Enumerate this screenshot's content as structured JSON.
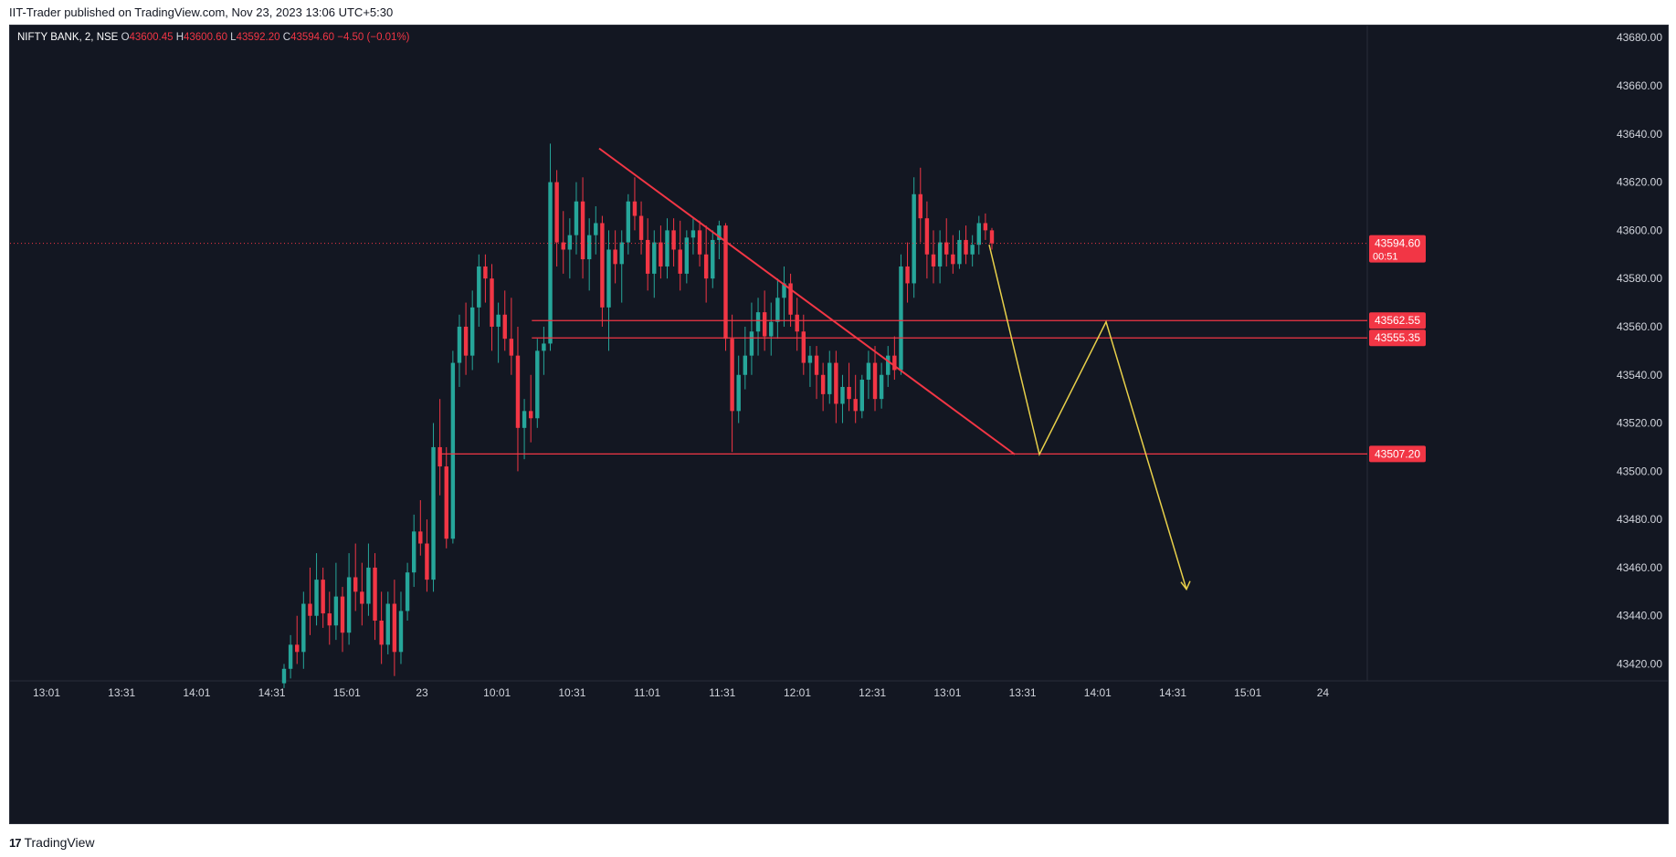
{
  "header": {
    "published_text": "IIT-Trader published on TradingView.com, Nov 23, 2023 13:06 UTC+5:30"
  },
  "legend": {
    "symbol": "NIFTY BANK, 2, NSE",
    "open_label": "O",
    "open": "43600.45",
    "high_label": "H",
    "high": "43600.60",
    "low_label": "L",
    "low": "43592.20",
    "close_label": "C",
    "close": "43594.60",
    "change": "−4.50 (−0.01%)"
  },
  "footer": {
    "logo_mark": "17",
    "logo_text": "TradingView"
  },
  "colors": {
    "background": "#131722",
    "up": "#26a69a",
    "down": "#f23645",
    "line": "#f23645",
    "projection": "#e8d04a",
    "axis_text": "#d1d4dc"
  },
  "chart_data": {
    "type": "candlestick",
    "symbol": "NIFTY BANK",
    "interval": "2",
    "exchange": "NSE",
    "ylim": [
      43413,
      43685
    ],
    "y_ticks": [
      43420,
      43440,
      43460,
      43480,
      43500,
      43520,
      43540,
      43560,
      43580,
      43600,
      43620,
      43640,
      43660,
      43680
    ],
    "y_tick_labels": [
      "43420.00",
      "43440.00",
      "43460.00",
      "43480.00",
      "43500.00",
      "43520.00",
      "43540.00",
      "43560.00",
      "43580.00",
      "43600.00",
      "43620.00",
      "43640.00",
      "43660.00",
      "43680.00"
    ],
    "x_ticks": [
      "13:01",
      "13:31",
      "14:01",
      "14:31",
      "15:01",
      "23",
      "10:01",
      "10:31",
      "11:01",
      "11:31",
      "12:01",
      "12:31",
      "13:01",
      "13:31",
      "14:01",
      "14:31",
      "15:01",
      "24"
    ],
    "current_price": {
      "value": 43594.6,
      "label": "43594.60",
      "countdown": "00:51"
    },
    "price_levels": [
      {
        "value": 43562.55,
        "label": "43562.55"
      },
      {
        "value": 43555.35,
        "label": "43555.35"
      },
      {
        "value": 43507.2,
        "label": "43507.20"
      }
    ],
    "candles": [
      [
        43412,
        43420,
        43410,
        43418
      ],
      [
        43418,
        43432,
        43414,
        43428
      ],
      [
        43428,
        43440,
        43420,
        43425
      ],
      [
        43425,
        43450,
        43418,
        43445
      ],
      [
        43445,
        43460,
        43432,
        43440
      ],
      [
        43440,
        43466,
        43436,
        43455
      ],
      [
        43455,
        43460,
        43435,
        43441
      ],
      [
        43441,
        43450,
        43428,
        43436
      ],
      [
        43436,
        43462,
        43430,
        43448
      ],
      [
        43448,
        43452,
        43425,
        43433
      ],
      [
        43433,
        43466,
        43428,
        43456
      ],
      [
        43456,
        43470,
        43442,
        43450
      ],
      [
        43450,
        43462,
        43436,
        43445
      ],
      [
        43445,
        43470,
        43440,
        43460
      ],
      [
        43460,
        43466,
        43430,
        43438
      ],
      [
        43438,
        43450,
        43420,
        43428
      ],
      [
        43428,
        43450,
        43424,
        43445
      ],
      [
        43445,
        43455,
        43415,
        43425
      ],
      [
        43425,
        43450,
        43420,
        43442
      ],
      [
        43442,
        43462,
        43438,
        43458
      ],
      [
        43458,
        43482,
        43452,
        43475
      ],
      [
        43475,
        43488,
        43465,
        43470
      ],
      [
        43470,
        43480,
        43450,
        43455
      ],
      [
        43455,
        43520,
        43450,
        43510
      ],
      [
        43510,
        43530,
        43490,
        43502
      ],
      [
        43502,
        43510,
        43468,
        43472
      ],
      [
        43472,
        43550,
        43470,
        43545
      ],
      [
        43545,
        43565,
        43535,
        43560
      ],
      [
        43560,
        43570,
        43540,
        43548
      ],
      [
        43548,
        43575,
        43542,
        43568
      ],
      [
        43568,
        43590,
        43560,
        43585
      ],
      [
        43585,
        43590,
        43570,
        43580
      ],
      [
        43580,
        43586,
        43550,
        43560
      ],
      [
        43560,
        43570,
        43545,
        43565
      ],
      [
        43565,
        43575,
        43550,
        43555
      ],
      [
        43555,
        43572,
        43540,
        43548
      ],
      [
        43548,
        43560,
        43500,
        43518
      ],
      [
        43518,
        43530,
        43505,
        43525
      ],
      [
        43525,
        43540,
        43512,
        43522
      ],
      [
        43522,
        43555,
        43518,
        43550
      ],
      [
        43550,
        43560,
        43540,
        43553
      ],
      [
        43553,
        43636,
        43550,
        43620
      ],
      [
        43620,
        43625,
        43585,
        43595
      ],
      [
        43595,
        43608,
        43582,
        43592
      ],
      [
        43592,
        43605,
        43580,
        43598
      ],
      [
        43598,
        43620,
        43590,
        43612
      ],
      [
        43612,
        43622,
        43580,
        43588
      ],
      [
        43588,
        43605,
        43575,
        43598
      ],
      [
        43598,
        43610,
        43590,
        43603
      ],
      [
        43603,
        43606,
        43560,
        43568
      ],
      [
        43568,
        43600,
        43550,
        43592
      ],
      [
        43592,
        43600,
        43578,
        43586
      ],
      [
        43586,
        43600,
        43570,
        43595
      ],
      [
        43595,
        43615,
        43590,
        43612
      ],
      [
        43612,
        43622,
        43600,
        43606
      ],
      [
        43606,
        43612,
        43590,
        43596
      ],
      [
        43596,
        43605,
        43575,
        43582
      ],
      [
        43582,
        43600,
        43572,
        43595
      ],
      [
        43595,
        43602,
        43580,
        43585
      ],
      [
        43585,
        43605,
        43580,
        43600
      ],
      [
        43600,
        43605,
        43585,
        43592
      ],
      [
        43592,
        43604,
        43575,
        43582
      ],
      [
        43582,
        43600,
        43578,
        43597
      ],
      [
        43597,
        43605,
        43590,
        43600
      ],
      [
        43600,
        43604,
        43585,
        43590
      ],
      [
        43590,
        43602,
        43570,
        43580
      ],
      [
        43580,
        43600,
        43576,
        43596
      ],
      [
        43596,
        43604,
        43588,
        43602
      ],
      [
        43602,
        43603,
        43550,
        43555
      ],
      [
        43555,
        43565,
        43508,
        43525
      ],
      [
        43525,
        43548,
        43520,
        43540
      ],
      [
        43540,
        43560,
        43534,
        43548
      ],
      [
        43548,
        43570,
        43540,
        43558
      ],
      [
        43558,
        43572,
        43548,
        43566
      ],
      [
        43566,
        43575,
        43550,
        43556
      ],
      [
        43556,
        43570,
        43548,
        43562
      ],
      [
        43562,
        43580,
        43555,
        43572
      ],
      [
        43572,
        43585,
        43560,
        43578
      ],
      [
        43578,
        43582,
        43560,
        43565
      ],
      [
        43565,
        43572,
        43550,
        43558
      ],
      [
        43558,
        43565,
        43540,
        43545
      ],
      [
        43545,
        43552,
        43535,
        43548
      ],
      [
        43548,
        43552,
        43530,
        43540
      ],
      [
        43540,
        43545,
        43525,
        43532
      ],
      [
        43532,
        43550,
        43528,
        43545
      ],
      [
        43545,
        43550,
        43520,
        43528
      ],
      [
        43528,
        43540,
        43520,
        43535
      ],
      [
        43535,
        43545,
        43525,
        43530
      ],
      [
        43530,
        43540,
        43520,
        43525
      ],
      [
        43525,
        43540,
        43522,
        43538
      ],
      [
        43538,
        43550,
        43530,
        43545
      ],
      [
        43545,
        43552,
        43525,
        43530
      ],
      [
        43530,
        43545,
        43526,
        43540
      ],
      [
        43540,
        43552,
        43535,
        43548
      ],
      [
        43548,
        43556,
        43538,
        43542
      ],
      [
        43542,
        43590,
        43540,
        43585
      ],
      [
        43585,
        43595,
        43570,
        43578
      ],
      [
        43578,
        43622,
        43572,
        43615
      ],
      [
        43615,
        43626,
        43595,
        43605
      ],
      [
        43605,
        43612,
        43580,
        43590
      ],
      [
        43590,
        43600,
        43578,
        43585
      ],
      [
        43585,
        43600,
        43578,
        43595
      ],
      [
        43595,
        43605,
        43585,
        43590
      ],
      [
        43590,
        43598,
        43582,
        43586
      ],
      [
        43586,
        43600,
        43584,
        43596
      ],
      [
        43596,
        43602,
        43586,
        43590
      ],
      [
        43590,
        43598,
        43585,
        43594
      ],
      [
        43594,
        43606,
        43590,
        43603
      ],
      [
        43603,
        43607,
        43596,
        43600
      ],
      [
        43600,
        43601,
        43592,
        43594.6
      ]
    ],
    "annotations": {
      "trendline": {
        "from": [
          10,
          43634
        ],
        "to": [
          32,
          43507
        ]
      },
      "projection": [
        [
          32.5,
          43594
        ],
        [
          34,
          43507
        ],
        [
          37,
          43562
        ],
        [
          40,
          43451
        ]
      ]
    }
  }
}
